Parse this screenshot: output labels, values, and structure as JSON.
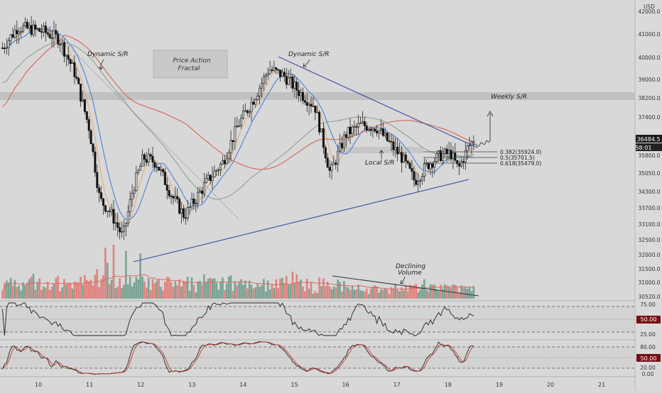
{
  "theme": {
    "background": "#d8d8d8",
    "bull": "#1f2833",
    "bear": "#111111",
    "ma_fast": "#3d7bd9",
    "ma_slow": "#d65a4a",
    "ma_mid": "#7a9a84",
    "ma_orange": "#e0a060",
    "vol_green": "#6f9c8c",
    "vol_red": "#e07a74",
    "trendline": "#3a4aa0",
    "badge_bg": "#7a0e12"
  },
  "axis": {
    "currency": "USD",
    "price_ticks": [
      "42000.0",
      "41000.0",
      "40000.0",
      "39000.0",
      "38200.0",
      "37400.0",
      "35800.0",
      "35050.0",
      "34300.0",
      "33700.0",
      "33100.0",
      "32500.0",
      "32000.0",
      "31500.0",
      "31000.0",
      "30520.0"
    ],
    "time_labels": [
      "10",
      "11",
      "12",
      "13",
      "14",
      "15",
      "16",
      "17",
      "18",
      "19",
      "20",
      "21"
    ],
    "rsi_ticks": [
      "75.00",
      "25.00"
    ],
    "stoch_ticks": [
      "80.00",
      "20.00",
      "0.00"
    ]
  },
  "badges": {
    "price": "36484.5",
    "countdown": "58:01",
    "rsi": "50.00",
    "stoch": "50.00"
  },
  "annotations": {
    "dynamic_sr_left": "Dynamic S/R",
    "dynamic_sr_top": "Dynamic S/R",
    "price_action_line1": "Price Action",
    "price_action_line2": "Fractal",
    "weekly_sr": "Weekly S/R",
    "local_sr": "Local S/R",
    "declining_line1": "Declining",
    "declining_line2": "Volume"
  },
  "fib_levels": [
    {
      "label": "0.382(35924.0)"
    },
    {
      "label": "0.5(35701.5)"
    },
    {
      "label": "0.618(35479.0)"
    }
  ],
  "chart_data": {
    "type": "candlestick",
    "symbol_quote": "USD",
    "x_axis": "day of month",
    "y_axis_price": [
      30520,
      42000
    ],
    "price_path_keyframes": [
      {
        "day": 9.3,
        "price": 40500
      },
      {
        "day": 9.6,
        "price": 41400
      },
      {
        "day": 10.1,
        "price": 41200
      },
      {
        "day": 10.4,
        "price": 40900
      },
      {
        "day": 10.7,
        "price": 39500
      },
      {
        "day": 11.0,
        "price": 37000
      },
      {
        "day": 11.2,
        "price": 34000
      },
      {
        "day": 11.4,
        "price": 33500
      },
      {
        "day": 11.65,
        "price": 32400
      },
      {
        "day": 11.85,
        "price": 34500
      },
      {
        "day": 12.05,
        "price": 35800
      },
      {
        "day": 12.3,
        "price": 35600
      },
      {
        "day": 12.6,
        "price": 34200
      },
      {
        "day": 12.85,
        "price": 33300
      },
      {
        "day": 13.0,
        "price": 33800
      },
      {
        "day": 13.3,
        "price": 34800
      },
      {
        "day": 13.6,
        "price": 35600
      },
      {
        "day": 13.9,
        "price": 37200
      },
      {
        "day": 14.2,
        "price": 38300
      },
      {
        "day": 14.5,
        "price": 39600
      },
      {
        "day": 14.8,
        "price": 39300
      },
      {
        "day": 15.1,
        "price": 38600
      },
      {
        "day": 15.4,
        "price": 38000
      },
      {
        "day": 15.7,
        "price": 35100
      },
      {
        "day": 16.0,
        "price": 36800
      },
      {
        "day": 16.3,
        "price": 37200
      },
      {
        "day": 16.6,
        "price": 37100
      },
      {
        "day": 16.9,
        "price": 36300
      },
      {
        "day": 17.1,
        "price": 35800
      },
      {
        "day": 17.35,
        "price": 34800
      },
      {
        "day": 17.6,
        "price": 35500
      },
      {
        "day": 17.85,
        "price": 35900
      },
      {
        "day": 18.05,
        "price": 36000
      },
      {
        "day": 18.2,
        "price": 35300
      },
      {
        "day": 18.4,
        "price": 36300
      },
      {
        "day": 18.5,
        "price": 36484.5
      }
    ],
    "last_price": 36484.5,
    "fib_retracement": [
      {
        "ratio": 0.382,
        "price": 35924.0
      },
      {
        "ratio": 0.5,
        "price": 35701.5
      },
      {
        "ratio": 0.618,
        "price": 35479.0
      }
    ],
    "indicators": [
      "Volume",
      "RSI",
      "Stochastic"
    ],
    "rsi_range": [
      0,
      100
    ],
    "rsi_bands": [
      25,
      50,
      75
    ],
    "stoch_bands": [
      0,
      20,
      50,
      80
    ]
  }
}
